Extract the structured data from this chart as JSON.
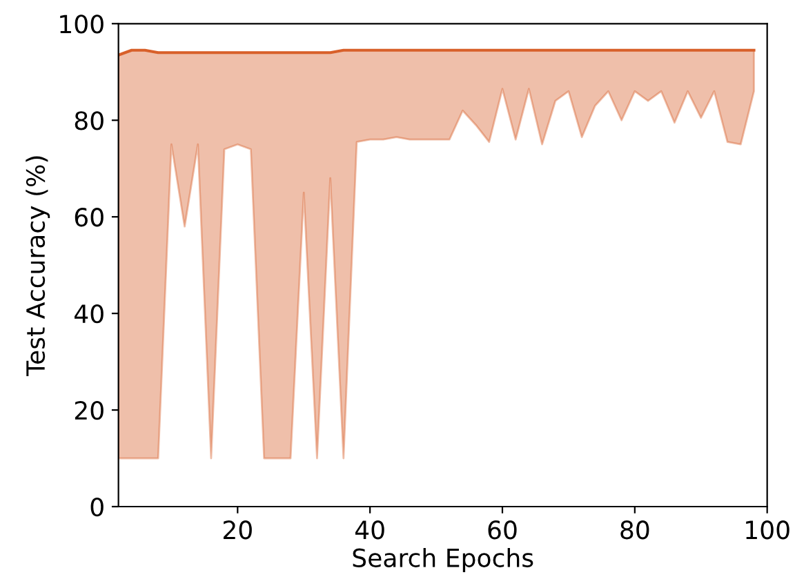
{
  "chart_data": {
    "type": "line",
    "xlabel": "Search Epochs",
    "ylabel": "Test Accuracy (%)",
    "xlim": [
      2,
      100
    ],
    "xticks": [
      20,
      40,
      60,
      80,
      100
    ],
    "ylim": [
      0,
      100
    ],
    "yticks": [
      0,
      20,
      40,
      60,
      80,
      100
    ],
    "grid": false,
    "legend": false,
    "marker": "none",
    "line_style": "solid",
    "series": [
      {
        "color": "#d8602a",
        "x": [
          2,
          4,
          6,
          8,
          10,
          12,
          14,
          16,
          18,
          20,
          22,
          24,
          26,
          28,
          30,
          32,
          34,
          36,
          38,
          40,
          42,
          44,
          46,
          48,
          50,
          52,
          54,
          56,
          58,
          60,
          62,
          64,
          66,
          68,
          70,
          72,
          74,
          76,
          78,
          80,
          82,
          84,
          86,
          88,
          90,
          92,
          94,
          96,
          98
        ],
        "values": [
          93.5,
          94.5,
          94.5,
          94,
          94,
          94,
          94,
          94,
          94,
          94,
          94,
          94,
          94,
          94,
          94,
          94,
          94,
          94.5,
          94.5,
          94.5,
          94.5,
          94.5,
          94.5,
          94.5,
          94.5,
          94.5,
          94.5,
          94.5,
          94.5,
          94.5,
          94.5,
          94.5,
          94.5,
          94.5,
          94.5,
          94.5,
          94.5,
          94.5,
          94.5,
          94.5,
          94.5,
          94.5,
          94.5,
          94.5,
          94.5,
          94.5,
          94.5,
          94.5,
          94.5
        ],
        "upper": [
          93.5,
          94.5,
          94.5,
          94,
          94,
          94,
          94,
          94,
          94,
          94,
          94,
          94,
          94,
          94,
          94,
          94,
          94,
          94.5,
          94.5,
          94.5,
          94.5,
          94.5,
          94.5,
          94.5,
          94.5,
          94.5,
          94.5,
          94.5,
          94.5,
          94.5,
          94.5,
          94.5,
          94.5,
          94.5,
          94.5,
          94.5,
          94.5,
          94.5,
          94.5,
          94.5,
          94.5,
          94.5,
          94.5,
          94.5,
          94.5,
          94.5,
          94.5,
          94.5,
          94.5
        ],
        "lower": [
          10,
          10,
          10,
          10,
          75,
          58,
          75,
          10,
          74,
          75,
          74,
          10,
          10,
          10,
          65,
          10,
          68,
          10,
          75.5,
          76,
          76,
          76.5,
          76,
          76,
          76,
          76,
          82,
          79,
          75.5,
          86.5,
          76,
          86.5,
          75,
          84,
          86,
          76.5,
          83,
          86,
          80,
          86,
          84,
          86,
          79.5,
          86,
          80.5,
          86,
          75.5,
          75,
          86
        ]
      }
    ]
  }
}
